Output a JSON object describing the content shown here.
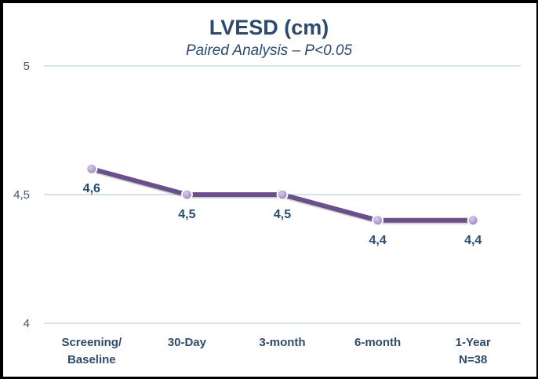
{
  "chart_data": {
    "type": "line",
    "title": "LVESD (cm)",
    "subtitle": "Paired Analysis – P<0.05",
    "xlabel": "",
    "ylabel": "",
    "categories": [
      [
        "Screening/",
        "Baseline"
      ],
      [
        "30-Day"
      ],
      [
        "3-month"
      ],
      [
        "6-month"
      ],
      [
        "1-Year",
        "N=38"
      ]
    ],
    "series": [
      {
        "name": "LVESD",
        "values": [
          4.6,
          4.5,
          4.5,
          4.4,
          4.4
        ],
        "data_labels": [
          "4,6",
          "4,5",
          "4,5",
          "4,4",
          "4,4"
        ],
        "color": "#6a4f8c",
        "marker_color": "#9b86c0"
      }
    ],
    "ylim": [
      4,
      5
    ],
    "yticks": [
      4,
      4.5,
      5
    ],
    "ytick_labels": [
      "4",
      "4,5",
      "5"
    ],
    "grid": true,
    "gridline_color": "#d6e4ec",
    "legend": "none",
    "title_color": "#2b4a6e"
  }
}
